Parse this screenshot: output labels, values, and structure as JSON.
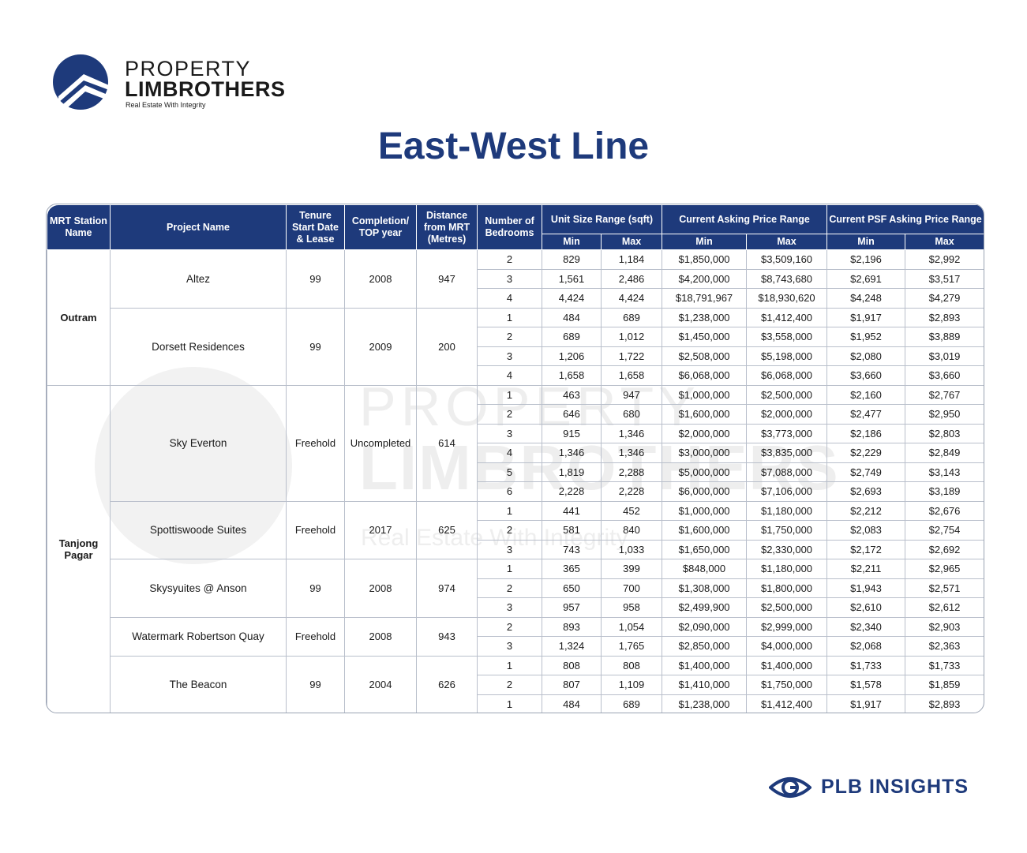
{
  "brand": {
    "line1": "PROPERTY",
    "line2": "LIMBROTHERS",
    "tagline": "Real Estate With Integrity",
    "color": "#1e3a7b"
  },
  "title": "East-West Line",
  "watermark": {
    "line1": "PROPERTY",
    "line2": "LIMBROTHERS",
    "line3": "Real Estate With Integrity"
  },
  "headers": {
    "station": "MRT Station Name",
    "project": "Project Name",
    "tenure": "Tenure Start Date & Lease",
    "completion": "Completion/ TOP year",
    "distance": "Distance from MRT (Metres)",
    "bedrooms": "Number of Bedrooms",
    "unit_size": "Unit Size Range (sqft)",
    "asking": "Current Asking Price Range",
    "psf": "Current PSF Asking Price Range",
    "min": "Min",
    "max": "Max"
  },
  "stations": [
    {
      "name": "Outram",
      "projects": [
        {
          "name": "Altez",
          "tenure": "99",
          "completion": "2008",
          "distance": "947",
          "rows": [
            [
              "2",
              "829",
              "1,184",
              "$1,850,000",
              "$3,509,160",
              "$2,196",
              "$2,992"
            ],
            [
              "3",
              "1,561",
              "2,486",
              "$4,200,000",
              "$8,743,680",
              "$2,691",
              "$3,517"
            ],
            [
              "4",
              "4,424",
              "4,424",
              "$18,791,967",
              "$18,930,620",
              "$4,248",
              "$4,279"
            ]
          ]
        },
        {
          "name": "Dorsett Residences",
          "tenure": "99",
          "completion": "2009",
          "distance": "200",
          "rows": [
            [
              "1",
              "484",
              "689",
              "$1,238,000",
              "$1,412,400",
              "$1,917",
              "$2,893"
            ],
            [
              "2",
              "689",
              "1,012",
              "$1,450,000",
              "$3,558,000",
              "$1,952",
              "$3,889"
            ],
            [
              "3",
              "1,206",
              "1,722",
              "$2,508,000",
              "$5,198,000",
              "$2,080",
              "$3,019"
            ],
            [
              "4",
              "1,658",
              "1,658",
              "$6,068,000",
              "$6,068,000",
              "$3,660",
              "$3,660"
            ]
          ]
        }
      ]
    },
    {
      "name": "Tanjong Pagar",
      "projects": [
        {
          "name": "Sky Everton",
          "tenure": "Freehold",
          "completion": "Uncompleted",
          "distance": "614",
          "rows": [
            [
              "1",
              "463",
              "947",
              "$1,000,000",
              "$2,500,000",
              "$2,160",
              "$2,767"
            ],
            [
              "2",
              "646",
              "680",
              "$1,600,000",
              "$2,000,000",
              "$2,477",
              "$2,950"
            ],
            [
              "3",
              "915",
              "1,346",
              "$2,000,000",
              "$3,773,000",
              "$2,186",
              "$2,803"
            ],
            [
              "4",
              "1,346",
              "1,346",
              "$3,000,000",
              "$3,835,000",
              "$2,229",
              "$2,849"
            ],
            [
              "5",
              "1,819",
              "2,288",
              "$5,000,000",
              "$7,088,000",
              "$2,749",
              "$3,143"
            ],
            [
              "6",
              "2,228",
              "2,228",
              "$6,000,000",
              "$7,106,000",
              "$2,693",
              "$3,189"
            ]
          ]
        },
        {
          "name": "Spottiswoode Suites",
          "tenure": "Freehold",
          "completion": "2017",
          "distance": "625",
          "rows": [
            [
              "1",
              "441",
              "452",
              "$1,000,000",
              "$1,180,000",
              "$2,212",
              "$2,676"
            ],
            [
              "2",
              "581",
              "840",
              "$1,600,000",
              "$1,750,000",
              "$2,083",
              "$2,754"
            ],
            [
              "3",
              "743",
              "1,033",
              "$1,650,000",
              "$2,330,000",
              "$2,172",
              "$2,692"
            ]
          ]
        },
        {
          "name": "Skysyuites @ Anson",
          "tenure": "99",
          "completion": "2008",
          "distance": "974",
          "rows": [
            [
              "1",
              "365",
              "399",
              "$848,000",
              "$1,180,000",
              "$2,211",
              "$2,965"
            ],
            [
              "2",
              "650",
              "700",
              "$1,308,000",
              "$1,800,000",
              "$1,943",
              "$2,571"
            ],
            [
              "3",
              "957",
              "958",
              "$2,499,900",
              "$2,500,000",
              "$2,610",
              "$2,612"
            ]
          ]
        },
        {
          "name": "Watermark Robertson Quay",
          "tenure": "Freehold",
          "completion": "2008",
          "distance": "943",
          "rows": [
            [
              "2",
              "893",
              "1,054",
              "$2,090,000",
              "$2,999,000",
              "$2,340",
              "$2,903"
            ],
            [
              "3",
              "1,324",
              "1,765",
              "$2,850,000",
              "$4,000,000",
              "$2,068",
              "$2,363"
            ]
          ]
        },
        {
          "name": "The Beacon",
          "tenure": "99",
          "completion": "2004",
          "distance": "626",
          "rows": [
            [
              "1",
              "808",
              "808",
              "$1,400,000",
              "$1,400,000",
              "$1,733",
              "$1,733"
            ],
            [
              "2",
              "807",
              "1,109",
              "$1,410,000",
              "$1,750,000",
              "$1,578",
              "$1,859"
            ],
            [
              "1",
              "484",
              "689",
              "$1,238,000",
              "$1,412,400",
              "$1,917",
              "$2,893"
            ]
          ]
        }
      ]
    }
  ],
  "footer": {
    "label": "PLB INSIGHTS"
  }
}
